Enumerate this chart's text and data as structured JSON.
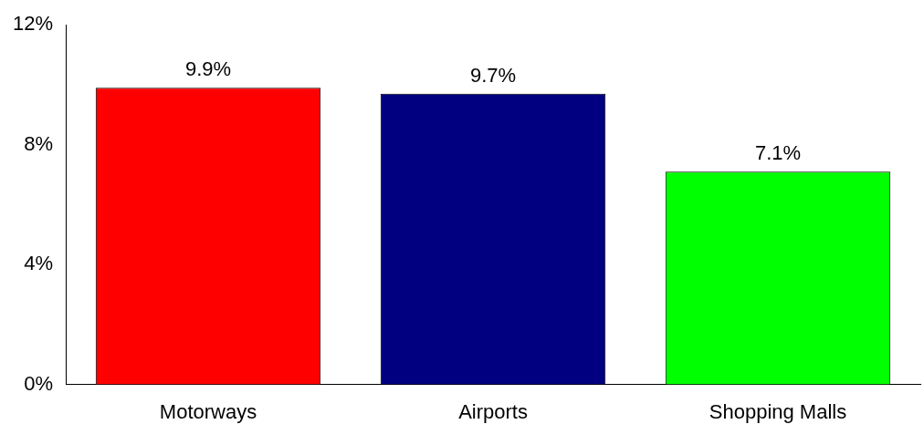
{
  "chart_data": {
    "type": "bar",
    "categories": [
      "Motorways",
      "Airports",
      "Shopping Malls"
    ],
    "values": [
      9.9,
      9.7,
      7.1
    ],
    "colors": [
      "#ff0000",
      "#000080",
      "#00ff00"
    ],
    "value_labels": [
      "9.9%",
      "9.7%",
      "7.1%"
    ],
    "ylim": [
      0,
      12
    ],
    "yticks": [
      {
        "value": 0,
        "label": "0%"
      },
      {
        "value": 4,
        "label": "4%"
      },
      {
        "value": 8,
        "label": "8%"
      },
      {
        "value": 12,
        "label": "12%"
      }
    ],
    "grid": false,
    "legend": false
  }
}
